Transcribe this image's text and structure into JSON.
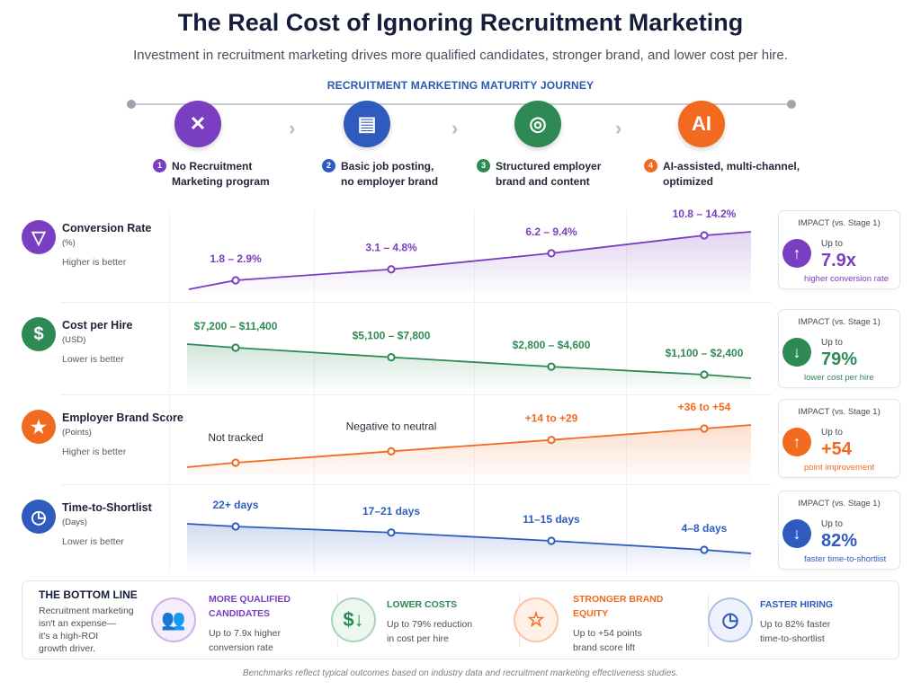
{
  "header": {
    "title": "The Real Cost of Ignoring Recruitment Marketing",
    "subtitle": "Investment in recruitment marketing drives more qualified candidates, stronger brand, and lower cost per hire.",
    "journey_label": "RECRUITMENT MARKETING MATURITY JOURNEY"
  },
  "stages": [
    {
      "num": "1",
      "line1": "No Recruitment",
      "line2": "Marketing program",
      "color": "#7a3fc0",
      "icon": "muted-megaphone-icon"
    },
    {
      "num": "2",
      "line1": "Basic job posting,",
      "line2": "no employer brand",
      "color": "#2f5bbf",
      "icon": "document-icon"
    },
    {
      "num": "3",
      "line1": "Structured employer",
      "line2": "brand and content",
      "color": "#2e8a55",
      "icon": "target-icon"
    },
    {
      "num": "4",
      "line1": "AI-assisted, multi-channel,",
      "line2": "optimized",
      "color": "#f26a1f",
      "icon": "ai-chip-icon"
    }
  ],
  "metrics": [
    {
      "title": "Conversion Rate",
      "unit": "(%)",
      "note": "Higher is better",
      "color": "#7a3fc0",
      "icon": "funnel-icon",
      "glyph": "▽",
      "impact": {
        "label": "IMPACT (vs. Stage 1)",
        "upto": "Up to",
        "value": "7.9x",
        "caption": "higher conversion rate",
        "direction": "up"
      }
    },
    {
      "title": "Cost per Hire",
      "unit": "(USD)",
      "note": "Lower is better",
      "color": "#2e8a55",
      "icon": "dollar-icon",
      "glyph": "$",
      "impact": {
        "label": "IMPACT (vs. Stage 1)",
        "upto": "Up to",
        "value": "79%",
        "caption": "lower cost per hire",
        "direction": "down"
      }
    },
    {
      "title": "Employer Brand Score",
      "unit": "(Points)",
      "note": "Higher is better",
      "color": "#f26a1f",
      "icon": "star-icon",
      "glyph": "★",
      "impact": {
        "label": "IMPACT (vs. Stage 1)",
        "upto": "Up to",
        "value": "+54",
        "caption": "point improvement",
        "direction": "up"
      }
    },
    {
      "title": "Time-to-Shortlist",
      "unit": "(Days)",
      "note": "Lower is better",
      "color": "#2f5bbf",
      "icon": "clock-icon",
      "glyph": "◷",
      "impact": {
        "label": "IMPACT (vs. Stage 1)",
        "upto": "Up to",
        "value": "82%",
        "caption": "faster time-to-shortlist",
        "direction": "down"
      }
    }
  ],
  "chart_data": [
    {
      "type": "line",
      "categories": [
        "Stage 1",
        "Stage 2",
        "Stage 3",
        "Stage 4"
      ],
      "series": [
        {
          "name": "Conversion Rate",
          "labels": [
            "1.8 – 2.9%",
            "3.1 – 4.8%",
            "6.2 – 9.4%",
            "10.8 – 14.2%"
          ],
          "values": [
            [
              1.8,
              2.9
            ],
            [
              3.1,
              4.8
            ],
            [
              6.2,
              9.4
            ],
            [
              10.8,
              14.2
            ]
          ]
        }
      ],
      "direction": "increasing"
    },
    {
      "type": "line",
      "categories": [
        "Stage 1",
        "Stage 2",
        "Stage 3",
        "Stage 4"
      ],
      "series": [
        {
          "name": "Cost per Hire",
          "labels": [
            "$7,200 – $11,400",
            "$5,100 – $7,800",
            "$2,800 – $4,600",
            "$1,100 – $2,400"
          ],
          "values": [
            [
              7200,
              11400
            ],
            [
              5100,
              7800
            ],
            [
              2800,
              4600
            ],
            [
              1100,
              2400
            ]
          ]
        }
      ],
      "direction": "decreasing"
    },
    {
      "type": "line",
      "categories": [
        "Stage 1",
        "Stage 2",
        "Stage 3",
        "Stage 4"
      ],
      "series": [
        {
          "name": "Employer Brand Score",
          "labels": [
            "Not tracked",
            "Negative to neutral",
            "+14 to +29",
            "+36 to +54"
          ],
          "values": [
            null,
            null,
            [
              14,
              29
            ],
            [
              36,
              54
            ]
          ]
        }
      ],
      "direction": "increasing"
    },
    {
      "type": "line",
      "categories": [
        "Stage 1",
        "Stage 2",
        "Stage 3",
        "Stage 4"
      ],
      "series": [
        {
          "name": "Time-to-Shortlist",
          "labels": [
            "22+ days",
            "17–21 days",
            "11–15 days",
            "4–8 days"
          ],
          "values": [
            [
              22,
              null
            ],
            [
              17,
              21
            ],
            [
              11,
              15
            ],
            [
              4,
              8
            ]
          ]
        }
      ],
      "direction": "decreasing"
    }
  ],
  "bottom": {
    "title": "THE BOTTOM LINE",
    "text_lines": [
      "Recruitment marketing",
      "isn't an expense—",
      "it's a high-ROI",
      "growth driver."
    ],
    "items": [
      {
        "head1": "MORE QUALIFIED",
        "head2": "CANDIDATES",
        "text1": "Up to 7.9x higher",
        "text2": "conversion rate",
        "color": "#7a3fc0",
        "bg": "#f4edfc",
        "glyph": "👥",
        "icon": "people-icon"
      },
      {
        "head1": "LOWER COSTS",
        "head2": "",
        "text1": "Up to 79% reduction",
        "text2": "in cost per hire",
        "color": "#2e8a55",
        "bg": "#ecf7f0",
        "glyph": "$↓",
        "icon": "dollar-down-icon"
      },
      {
        "head1": "STRONGER BRAND",
        "head2": "EQUITY",
        "text1": "Up to +54 points",
        "text2": "brand score lift",
        "color": "#f26a1f",
        "bg": "#fff1e8",
        "glyph": "☆",
        "icon": "star-outline-icon"
      },
      {
        "head1": "FASTER HIRING",
        "head2": "",
        "text1": "Up to 82% faster",
        "text2": "time-to-shortlist",
        "color": "#2f5bbf",
        "bg": "#edf2fc",
        "glyph": "◷",
        "icon": "fast-clock-icon"
      }
    ]
  },
  "footer": "Benchmarks reflect typical outcomes based on industry data and recruitment marketing effectiveness studies."
}
